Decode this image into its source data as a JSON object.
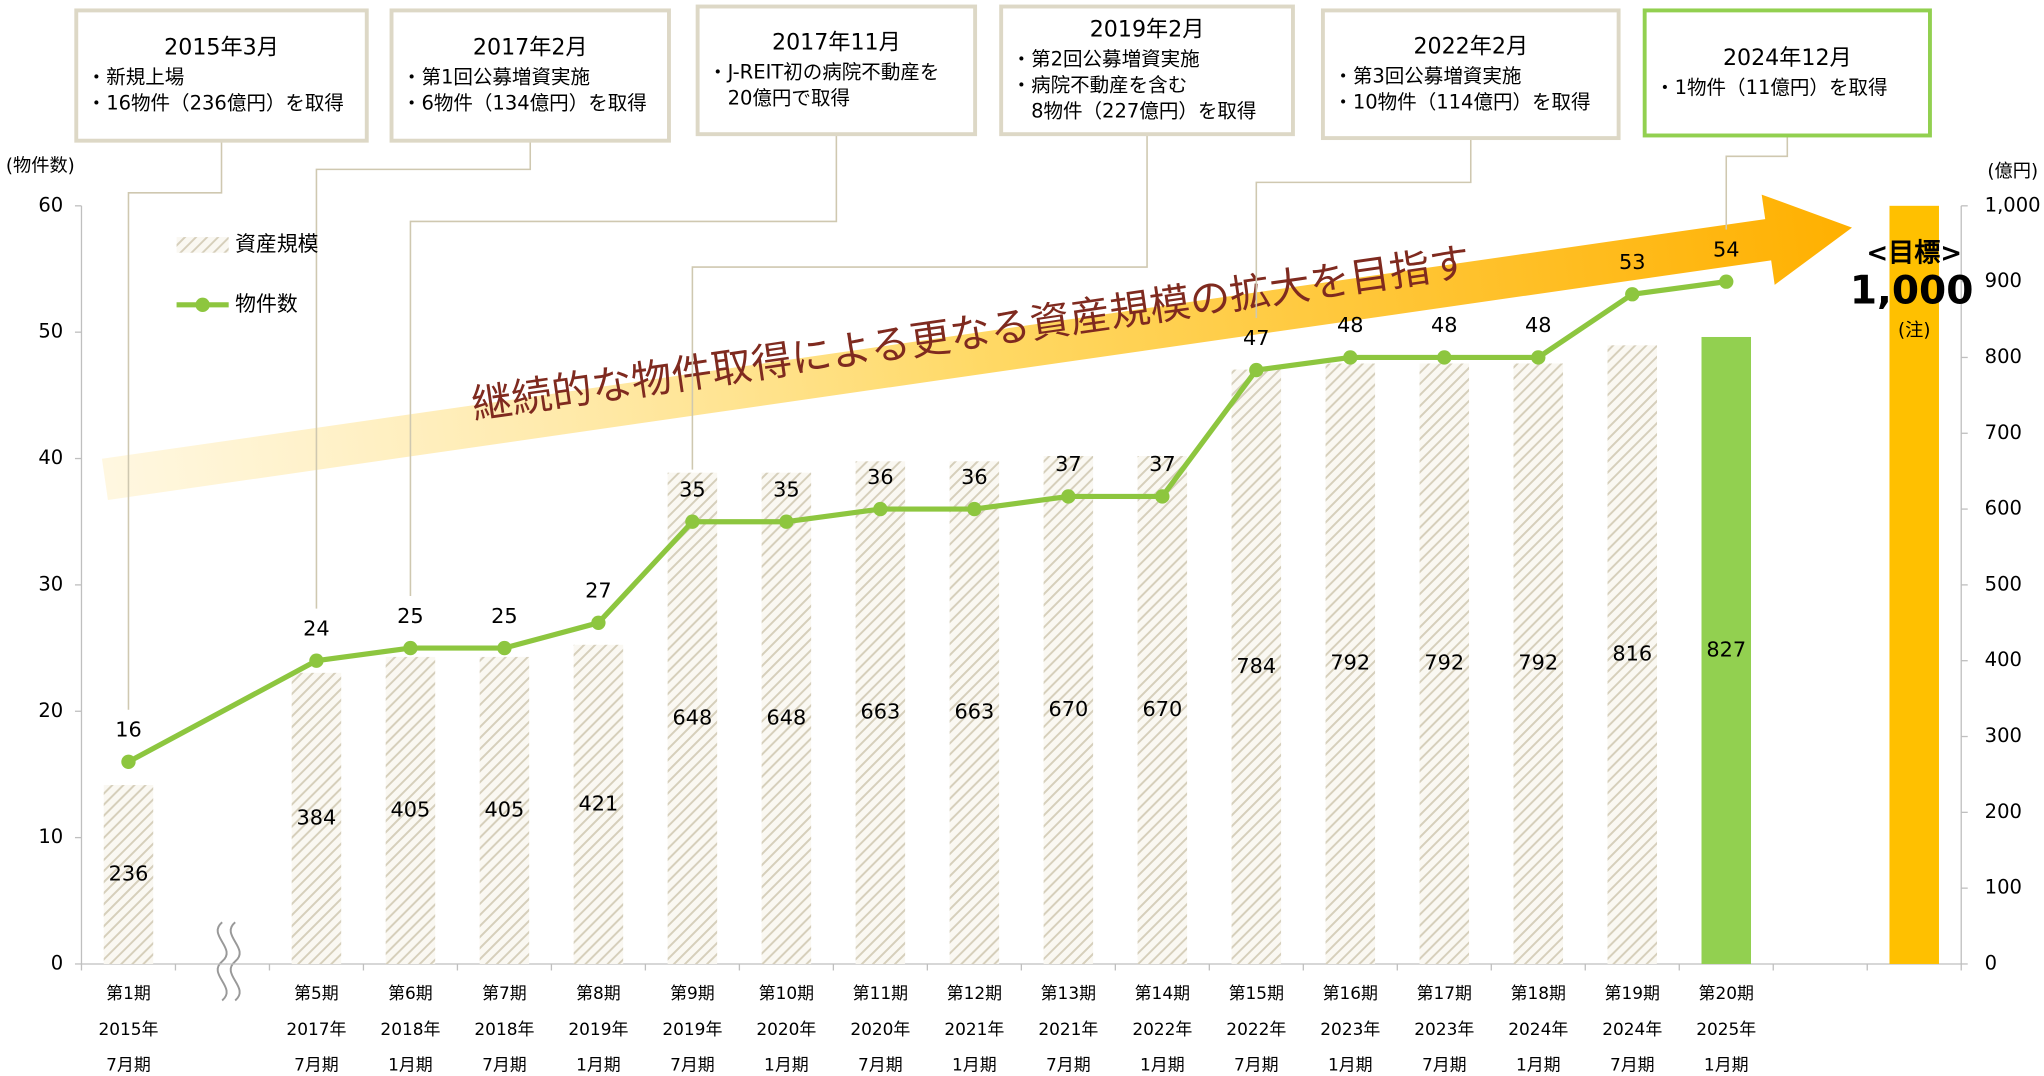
{
  "chart_data": {
    "type": "combo",
    "categories": [
      [
        "第1期",
        "2015年",
        "7月期"
      ],
      null,
      [
        "第5期",
        "2017年",
        "7月期"
      ],
      [
        "第6期",
        "2018年",
        "1月期"
      ],
      [
        "第7期",
        "2018年",
        "7月期"
      ],
      [
        "第8期",
        "2019年",
        "1月期"
      ],
      [
        "第9期",
        "2019年",
        "7月期"
      ],
      [
        "第10期",
        "2020年",
        "1月期"
      ],
      [
        "第11期",
        "2020年",
        "7月期"
      ],
      [
        "第12期",
        "2021年",
        "1月期"
      ],
      [
        "第13期",
        "2021年",
        "7月期"
      ],
      [
        "第14期",
        "2022年",
        "1月期"
      ],
      [
        "第15期",
        "2022年",
        "7月期"
      ],
      [
        "第16期",
        "2023年",
        "1月期"
      ],
      [
        "第17期",
        "2023年",
        "7月期"
      ],
      [
        "第18期",
        "2024年",
        "1月期"
      ],
      [
        "第19期",
        "2024年",
        "7月期"
      ],
      [
        "第20期",
        "2025年",
        "1月期"
      ],
      null,
      null
    ],
    "y_label": "(物件数)",
    "ylim": [
      0,
      60
    ],
    "yticks": [
      0,
      10,
      20,
      30,
      40,
      50,
      60
    ],
    "y2_label": "(億円)",
    "y2lim": [
      0,
      1000
    ],
    "y2ticks": [
      0,
      100,
      200,
      300,
      400,
      500,
      600,
      700,
      800,
      900,
      {
        "value": 1000,
        "label": "1,000"
      }
    ],
    "legend": "top-left",
    "series": [
      {
        "name": "資産規模",
        "type": "bar",
        "axis": "y2",
        "color": "#d6cfbb",
        "x": [
          0,
          2,
          3,
          4,
          5,
          6,
          7,
          8,
          9,
          10,
          11,
          12,
          13,
          14,
          15,
          16,
          17
        ],
        "values": [
          236,
          384,
          405,
          405,
          421,
          648,
          648,
          663,
          663,
          670,
          670,
          784,
          792,
          792,
          792,
          816,
          827
        ],
        "colors": [
          "#d6cfbb",
          "#d6cfbb",
          "#d6cfbb",
          "#d6cfbb",
          "#d6cfbb",
          "#d6cfbb",
          "#d6cfbb",
          "#d6cfbb",
          "#d6cfbb",
          "#d6cfbb",
          "#d6cfbb",
          "#d6cfbb",
          "#d6cfbb",
          "#d6cfbb",
          "#d6cfbb",
          "#d6cfbb",
          "#92d050"
        ]
      },
      {
        "name": "物件数",
        "type": "line",
        "axis": "y",
        "color": "#8dc63f",
        "x": [
          0,
          2,
          3,
          4,
          5,
          6,
          7,
          8,
          9,
          10,
          11,
          12,
          13,
          14,
          15,
          16,
          17
        ],
        "values": [
          16,
          24,
          25,
          25,
          27,
          35,
          35,
          36,
          36,
          37,
          37,
          47,
          48,
          48,
          48,
          53,
          54
        ]
      }
    ],
    "target": {
      "x": 19,
      "axis": "y2",
      "value": 1000,
      "value_label": "1,000",
      "label": "<目標>",
      "note": "(注)",
      "color": "#ffc000"
    },
    "arrow_text": "継続的な物件取得による更なる資産規模の拡大を目指す",
    "annotations": [
      {
        "title": "2015年3月",
        "lines": [
          "・新規上場",
          "・16物件（236億円）を取得"
        ],
        "x": 0,
        "border_color": "#ddd8c6"
      },
      {
        "title": "2017年2月",
        "lines": [
          "・第1回公募増資実施",
          "・6物件（134億円）を取得"
        ],
        "x": 2,
        "border_color": "#ddd8c6"
      },
      {
        "title": "2017年11月",
        "lines": [
          "・J-REIT初の病院不動産を",
          "　20億円で取得"
        ],
        "x": 3,
        "border_color": "#ddd8c6"
      },
      {
        "title": "2019年2月",
        "lines": [
          "・第2回公募増資実施",
          "・病院不動産を含む",
          "　8物件（227億円）を取得"
        ],
        "x": 6,
        "border_color": "#ddd8c6"
      },
      {
        "title": "2022年2月",
        "lines": [
          "・第3回公募増資実施",
          "・10物件（114億円）を取得"
        ],
        "x": 12,
        "border_color": "#ddd8c6"
      },
      {
        "title": "2024年12月",
        "lines": [
          "・1物件（11億円）を取得"
        ],
        "x": 17,
        "border_color": "#92d050"
      }
    ]
  }
}
